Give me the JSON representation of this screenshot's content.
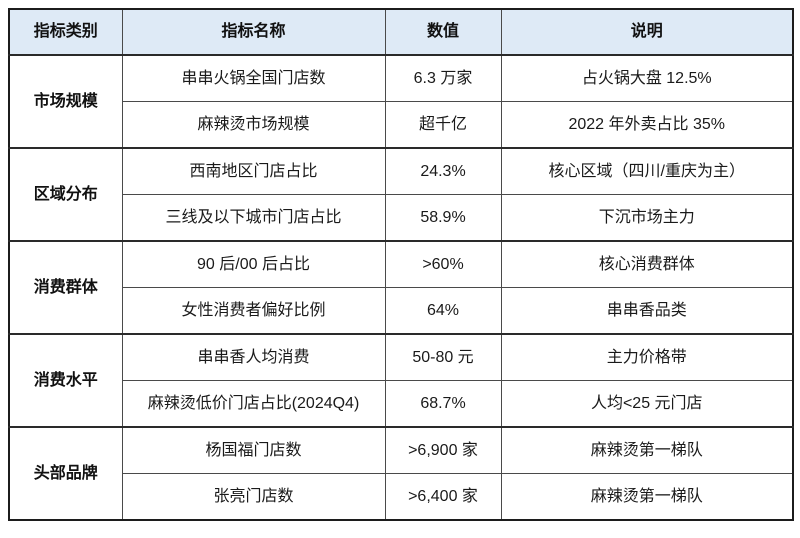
{
  "table": {
    "headers": {
      "category": "指标类别",
      "name": "指标名称",
      "value": "数值",
      "note": "说明"
    },
    "sections": [
      {
        "category": "市场规模",
        "rows": [
          {
            "name": "串串火锅全国门店数",
            "value": "6.3 万家",
            "note": "占火锅大盘 12.5%"
          },
          {
            "name": "麻辣烫市场规模",
            "value": "超千亿",
            "note": "2022 年外卖占比 35%"
          }
        ]
      },
      {
        "category": "区域分布",
        "rows": [
          {
            "name": "西南地区门店占比",
            "value": "24.3%",
            "note": "核心区域（四川/重庆为主）"
          },
          {
            "name": "三线及以下城市门店占比",
            "value": "58.9%",
            "note": "下沉市场主力"
          }
        ]
      },
      {
        "category": "消费群体",
        "rows": [
          {
            "name": "90 后/00 后占比",
            "value": ">60%",
            "note": "核心消费群体"
          },
          {
            "name": "女性消费者偏好比例",
            "value": "64%",
            "note": "串串香品类"
          }
        ]
      },
      {
        "category": "消费水平",
        "rows": [
          {
            "name": "串串香人均消费",
            "value": "50-80 元",
            "note": "主力价格带"
          },
          {
            "name": "麻辣烫低价门店占比(2024Q4)",
            "value": "68.7%",
            "note": "人均<25 元门店"
          }
        ]
      },
      {
        "category": "头部品牌",
        "rows": [
          {
            "name": "杨国福门店数",
            "value": ">6,900 家",
            "note": "麻辣烫第一梯队"
          },
          {
            "name": "张亮门店数",
            "value": ">6,400 家",
            "note": "麻辣烫第一梯队"
          }
        ]
      }
    ]
  },
  "colors": {
    "header_bg": "#deeaf6",
    "outer_border": "#1c1c1c",
    "inner_border": "#4a4a4a",
    "text": "#1a1a1a"
  }
}
